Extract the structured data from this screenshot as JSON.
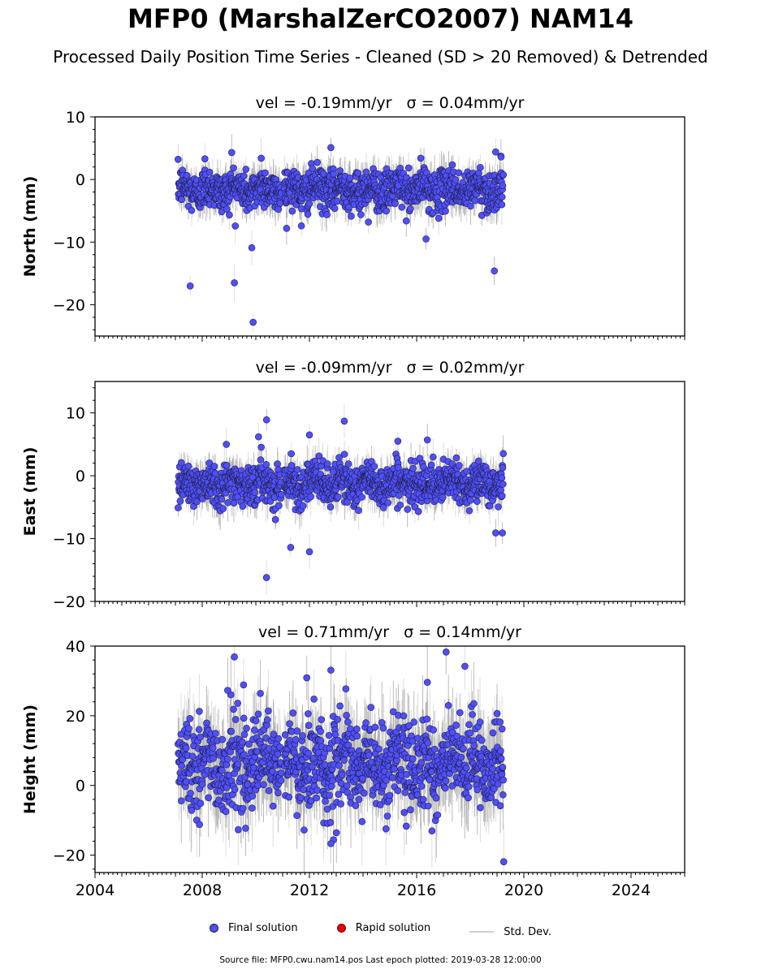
{
  "title": "MFP0 (MarshalZerCO2007) NAM14",
  "subtitle": "Processed Daily Position Time Series - Cleaned (SD > 20 Removed) & Detrended",
  "legend": {
    "final": "Final solution",
    "rapid": "Rapid solution",
    "sd": "Std. Dev."
  },
  "footer": "Source file: MFP0.cwu.nam14.pos  Last epoch plotted: 2019-03-28 12:00:00",
  "colors": {
    "final": "#4f4fff",
    "rapid": "#e00000",
    "sd": "#b0b0b0"
  },
  "chart_data": [
    {
      "type": "scatter",
      "component": "North",
      "ylabel": "North (mm)",
      "velocity_label": "vel = -0.19mm/yr   σ = 0.04mm/yr",
      "xlim": [
        2004,
        2026
      ],
      "ylim": [
        -25,
        10
      ],
      "y_ticks": [
        -20,
        -10,
        0,
        10
      ],
      "data_span": [
        2007.1,
        2019.24
      ],
      "gap": [
        2010.95,
        2011.05
      ],
      "mean": -1.6,
      "scatter_sd": 1.6,
      "outliers": [
        [
          2007.55,
          -17.0
        ],
        [
          2009.2,
          -16.5
        ],
        [
          2009.9,
          -22.8
        ],
        [
          2009.85,
          -10.9
        ],
        [
          2010.2,
          3.4
        ],
        [
          2008.1,
          3.3
        ],
        [
          2009.1,
          4.3
        ],
        [
          2012.8,
          5.1
        ],
        [
          2018.9,
          -14.6
        ],
        [
          2018.95,
          4.4
        ],
        [
          2016.35,
          -9.5
        ],
        [
          2014.2,
          -6.8
        ],
        [
          2011.7,
          -7.4
        ],
        [
          2019.15,
          3.6
        ]
      ]
    },
    {
      "type": "scatter",
      "component": "East",
      "ylabel": "East (mm)",
      "velocity_label": "vel = -0.09mm/yr   σ = 0.02mm/yr",
      "xlim": [
        2004,
        2026
      ],
      "ylim": [
        -20,
        15
      ],
      "y_ticks": [
        -20,
        -10,
        0,
        10
      ],
      "data_span": [
        2007.1,
        2019.24
      ],
      "gap": [
        2010.95,
        2011.05
      ],
      "mean": -1.2,
      "scatter_sd": 1.6,
      "outliers": [
        [
          2010.4,
          8.9
        ],
        [
          2013.3,
          8.7
        ],
        [
          2012.0,
          6.5
        ],
        [
          2010.1,
          6.2
        ],
        [
          2010.4,
          -16.2
        ],
        [
          2011.3,
          -11.4
        ],
        [
          2012.0,
          -12.1
        ],
        [
          2018.95,
          -9.1
        ],
        [
          2019.2,
          -9.1
        ],
        [
          2015.3,
          5.5
        ],
        [
          2016.4,
          5.7
        ],
        [
          2008.9,
          5.0
        ]
      ]
    },
    {
      "type": "scatter",
      "component": "Height",
      "ylabel": "Height (mm)",
      "velocity_label": "vel = 0.71mm/yr   σ = 0.14mm/yr",
      "xlim": [
        2004,
        2026
      ],
      "ylim": [
        -25,
        40
      ],
      "y_ticks": [
        -20,
        0,
        20,
        40
      ],
      "data_span": [
        2007.1,
        2019.24
      ],
      "gap": [
        2010.95,
        2011.05
      ],
      "mean": 6.0,
      "scatter_sd": 6.5,
      "outliers": [
        [
          2009.2,
          36.9
        ],
        [
          2017.1,
          38.3
        ],
        [
          2017.8,
          34.2
        ],
        [
          2012.8,
          33.1
        ],
        [
          2011.9,
          30.9
        ],
        [
          2012.8,
          -16.7
        ],
        [
          2019.25,
          -21.9
        ],
        [
          2011.8,
          -12.8
        ],
        [
          2008.95,
          27.3
        ],
        [
          2016.4,
          29.6
        ],
        [
          2007.9,
          -11.2
        ]
      ]
    }
  ],
  "x_ticks": [
    2004,
    2008,
    2012,
    2016,
    2020,
    2024
  ]
}
